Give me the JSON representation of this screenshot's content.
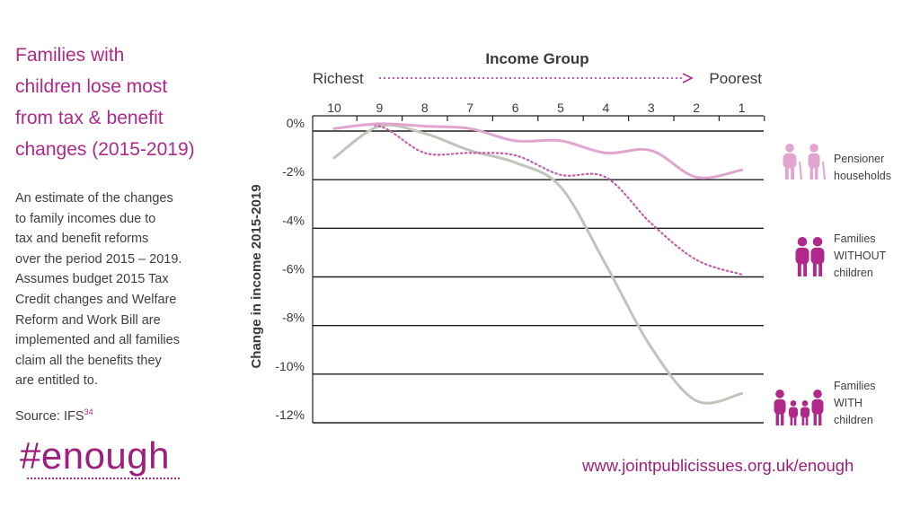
{
  "heading": "Families with\nchildren lose most\nfrom tax & benefit\nchanges (2015-2019)",
  "description": "An estimate of the changes\nto family incomes due to\ntax and benefit reforms\nover the period 2015 – 2019.\nAssumes budget 2015 Tax\nCredit changes and Welfare\nReform and Work Bill are\nimplemented and all families\nclaim all the benefits they\nare entitled to.",
  "source": {
    "label": "Source: IFS",
    "note": "34"
  },
  "hashtag": "#enough",
  "url": "www.jointpublicissues.org.uk/enough",
  "colors": {
    "accent": "#b0288a",
    "pensioner": "#e0a6cf",
    "without_children": "#c45fa6",
    "with_children": "#c3c3bb"
  },
  "chart_data": {
    "type": "line",
    "xlabel": "Income Group",
    "richest_label": "Richest",
    "poorest_label": "Poorest",
    "ylabel": "Change in income 2015-2019",
    "categories": [
      "10",
      "9",
      "8",
      "7",
      "6",
      "5",
      "4",
      "3",
      "2",
      "1"
    ],
    "yticks": [
      "0%",
      "-2%",
      "-4%",
      "-6%",
      "-8%",
      "-10%",
      "-12%"
    ],
    "ylim": [
      -12,
      0
    ],
    "series": [
      {
        "name": "Pensioner\nhouseholds",
        "style": "solid-light",
        "icon": "elderly-couple-icon",
        "values": [
          0.1,
          0.3,
          0.2,
          0.1,
          -0.4,
          -0.4,
          -0.9,
          -0.8,
          -1.9,
          -1.6
        ]
      },
      {
        "name": "Families\nWITHOUT\nchildren",
        "style": "dotted",
        "icon": "couple-icon",
        "values": [
          0.1,
          0.2,
          -0.9,
          -0.9,
          -1.0,
          -1.8,
          -1.9,
          -3.8,
          -5.3,
          -5.9
        ]
      },
      {
        "name": "Families\nWITH\nchildren",
        "style": "solid-grey",
        "icon": "family-icon",
        "values": [
          -1.1,
          0.2,
          -0.1,
          -0.8,
          -1.3,
          -2.3,
          -5.5,
          -8.9,
          -11.1,
          -10.8
        ]
      }
    ]
  }
}
